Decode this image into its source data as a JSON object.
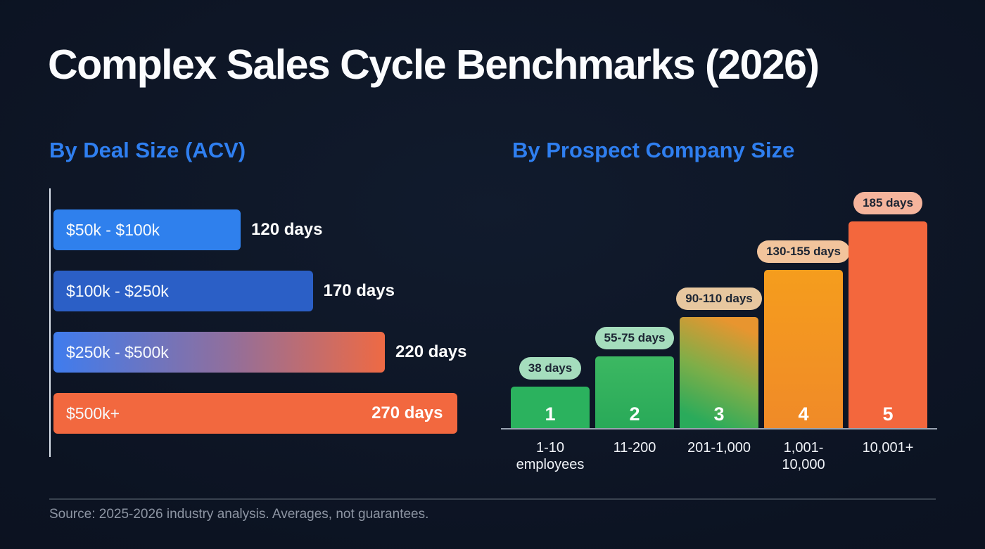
{
  "page": {
    "title": "Complex Sales Cycle Benchmarks (2026)",
    "footer_source": "Source: 2025-2026 industry analysis. Averages, not guarantees."
  },
  "colors": {
    "background": "#0d1523",
    "heading_blue": "#2f7ff0",
    "deal_bar_blue": "#2f80ed",
    "deal_bar_dark_blue": "#2b5fc6",
    "deal_bar_orange": "#f2683f",
    "company_bar_green": "#2bb25e",
    "company_bar_amber": "#f5941e",
    "company_bar_orange": "#f3673d"
  },
  "chart_data": [
    {
      "type": "bar",
      "orientation": "horizontal",
      "title": "By Deal Size (ACV)",
      "categories": [
        "$50k - $100k",
        "$100k - $250k",
        "$250k - $500k",
        "$500k+"
      ],
      "values": [
        120,
        170,
        220,
        270
      ],
      "value_labels": [
        "120 days",
        "170 days",
        "220 days",
        "270 days"
      ],
      "unit": "days",
      "xlim": [
        0,
        280
      ],
      "grid": false,
      "legend": false
    },
    {
      "type": "bar",
      "orientation": "vertical",
      "title": "By Prospect Company Size",
      "categories": [
        "1-10 employees",
        "11-200",
        "201-1,000",
        "1,001-10,000",
        "10,001+"
      ],
      "bar_numbers": [
        "1",
        "2",
        "3",
        "4",
        "5"
      ],
      "values": [
        38,
        65,
        100,
        142,
        185
      ],
      "range_labels": [
        "38 days",
        "55-75 days",
        "90-110 days",
        "130-155 days",
        "185 days"
      ],
      "unit": "days",
      "ylim": [
        0,
        200
      ],
      "grid": false,
      "legend": false
    }
  ]
}
